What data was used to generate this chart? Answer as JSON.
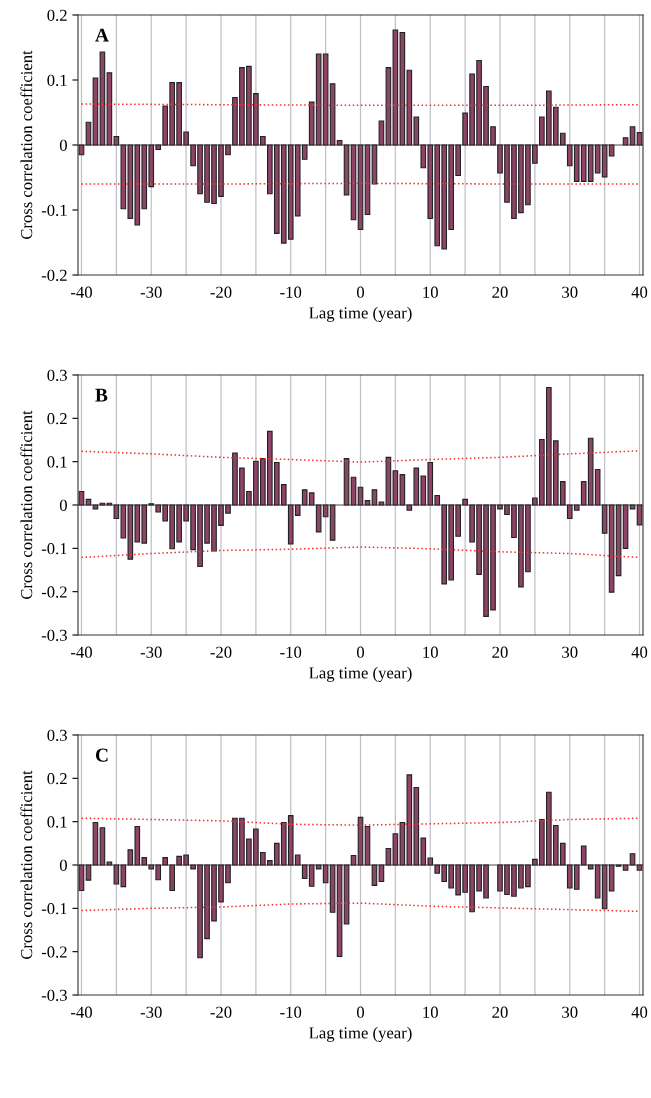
{
  "chart_data": [
    {
      "type": "bar",
      "annotations": [
        "A"
      ],
      "xlabel": "Lag time (year)",
      "ylabel": "Cross correlation coefficient",
      "x": [
        -40,
        -39,
        -38,
        -37,
        -36,
        -35,
        -34,
        -33,
        -32,
        -31,
        -30,
        -29,
        -28,
        -27,
        -26,
        -25,
        -24,
        -23,
        -22,
        -21,
        -20,
        -19,
        -18,
        -17,
        -16,
        -15,
        -14,
        -13,
        -12,
        -11,
        -10,
        -9,
        -8,
        -7,
        -6,
        -5,
        -4,
        -3,
        -2,
        -1,
        0,
        1,
        2,
        3,
        4,
        5,
        6,
        7,
        8,
        9,
        10,
        11,
        12,
        13,
        14,
        15,
        16,
        17,
        18,
        19,
        20,
        21,
        22,
        23,
        24,
        25,
        26,
        27,
        28,
        29,
        30,
        31,
        32,
        33,
        34,
        35,
        36,
        37,
        38,
        39,
        40
      ],
      "xlim": [
        -40.5,
        40.5
      ],
      "xticks": [
        -40,
        {
          "value": -35,
          "label": null
        },
        -30,
        {
          "value": -25,
          "label": null
        },
        -20,
        {
          "value": -15,
          "label": null
        },
        -10,
        {
          "value": -5,
          "label": null
        },
        0,
        {
          "value": 5,
          "label": null
        },
        10,
        {
          "value": 15,
          "label": null
        },
        20,
        {
          "value": 25,
          "label": null
        },
        30,
        {
          "value": 35,
          "label": null
        },
        40
      ],
      "ylim": [
        -0.2,
        0.2
      ],
      "yticks": [
        -0.2,
        -0.1,
        0,
        0.1,
        0.2
      ],
      "grid": "x",
      "series": [
        {
          "color": "#8e4466",
          "values": [
            -0.015,
            0.035,
            0.103,
            0.143,
            0.111,
            0.013,
            -0.098,
            -0.113,
            -0.123,
            -0.098,
            -0.064,
            -0.007,
            0.06,
            0.096,
            0.096,
            0.02,
            -0.032,
            -0.075,
            -0.088,
            -0.09,
            -0.079,
            -0.015,
            0.073,
            0.119,
            0.121,
            0.079,
            0.013,
            -0.075,
            -0.136,
            -0.151,
            -0.145,
            -0.109,
            -0.022,
            0.066,
            0.14,
            0.14,
            0.094,
            0.007,
            -0.077,
            -0.115,
            -0.13,
            -0.107,
            -0.06,
            0.037,
            0.119,
            0.177,
            0.173,
            0.115,
            0.043,
            -0.035,
            -0.113,
            -0.155,
            -0.16,
            -0.13,
            -0.047,
            0.049,
            0.109,
            0.13,
            0.09,
            0.028,
            -0.043,
            -0.088,
            -0.113,
            -0.104,
            -0.092,
            -0.028,
            0.043,
            0.083,
            0.058,
            0.018,
            -0.032,
            -0.056,
            -0.056,
            -0.056,
            -0.043,
            -0.049,
            -0.017,
            null,
            0.011,
            0.028,
            0.019
          ]
        },
        {
          "type": "line",
          "color": "#ee3333",
          "line_style": "dotted",
          "x": [
            -40,
            -20,
            0,
            20,
            40
          ],
          "values": [
            0.063,
            0.062,
            0.061,
            0.061,
            0.062
          ]
        },
        {
          "type": "line",
          "color": "#ee3333",
          "line_style": "dotted",
          "x": [
            -40,
            -20,
            0,
            20,
            40
          ],
          "values": [
            -0.06,
            -0.06,
            -0.059,
            -0.06,
            -0.06
          ]
        }
      ]
    },
    {
      "type": "bar",
      "annotations": [
        "B"
      ],
      "xlabel": "Lag time (year)",
      "ylabel": "Cross correlation coefficient",
      "x": [
        -40,
        -39,
        -38,
        -37,
        -36,
        -35,
        -34,
        -33,
        -32,
        -31,
        -30,
        -29,
        -28,
        -27,
        -26,
        -25,
        -24,
        -23,
        -22,
        -21,
        -20,
        -19,
        -18,
        -17,
        -16,
        -15,
        -14,
        -13,
        -12,
        -11,
        -10,
        -9,
        -8,
        -7,
        -6,
        -5,
        -4,
        -3,
        -2,
        -1,
        0,
        1,
        2,
        3,
        4,
        5,
        6,
        7,
        8,
        9,
        10,
        11,
        12,
        13,
        14,
        15,
        16,
        17,
        18,
        19,
        20,
        21,
        22,
        23,
        24,
        25,
        26,
        27,
        28,
        29,
        30,
        31,
        32,
        33,
        34,
        35,
        36,
        37,
        38,
        39,
        40
      ],
      "xlim": [
        -40.5,
        40.5
      ],
      "xticks": [
        -40,
        {
          "value": -35,
          "label": null
        },
        -30,
        {
          "value": -25,
          "label": null
        },
        -20,
        {
          "value": -15,
          "label": null
        },
        -10,
        {
          "value": -5,
          "label": null
        },
        0,
        {
          "value": 5,
          "label": null
        },
        10,
        {
          "value": 15,
          "label": null
        },
        20,
        {
          "value": 25,
          "label": null
        },
        30,
        {
          "value": 35,
          "label": null
        },
        40
      ],
      "ylim": [
        -0.3,
        0.3
      ],
      "yticks": [
        -0.3,
        -0.2,
        -0.1,
        0,
        0.1,
        0.2,
        0.3
      ],
      "grid": "x",
      "series": [
        {
          "color": "#8e4466",
          "values": [
            0.031,
            0.013,
            -0.009,
            0.004,
            0.004,
            -0.031,
            -0.076,
            -0.125,
            -0.085,
            -0.088,
            0.003,
            -0.016,
            -0.037,
            -0.101,
            -0.085,
            -0.037,
            -0.103,
            -0.142,
            -0.088,
            -0.106,
            -0.047,
            -0.019,
            0.12,
            0.085,
            0.031,
            0.101,
            0.107,
            0.17,
            0.098,
            0.047,
            -0.09,
            -0.024,
            0.035,
            0.028,
            -0.062,
            -0.027,
            -0.081,
            null,
            0.107,
            0.064,
            0.041,
            0.01,
            0.035,
            0.007,
            0.11,
            0.079,
            0.07,
            -0.012,
            0.085,
            0.067,
            0.098,
            0.022,
            -0.182,
            -0.173,
            -0.072,
            0.013,
            -0.085,
            -0.16,
            -0.257,
            -0.242,
            -0.009,
            -0.022,
            -0.075,
            -0.189,
            -0.154,
            0.016,
            0.151,
            0.271,
            0.148,
            0.054,
            -0.031,
            -0.012,
            0.054,
            0.154,
            0.082,
            -0.065,
            -0.201,
            -0.163,
            -0.1,
            -0.009,
            -0.046
          ]
        },
        {
          "type": "line",
          "color": "#ee3333",
          "line_style": "dotted",
          "x": [
            -40,
            -30,
            -20,
            -10,
            0,
            10,
            20,
            30,
            40
          ],
          "values": [
            0.124,
            0.118,
            0.11,
            0.105,
            0.099,
            0.105,
            0.11,
            0.118,
            0.125
          ]
        },
        {
          "type": "line",
          "color": "#ee3333",
          "line_style": "dotted",
          "x": [
            -40,
            -30,
            -20,
            -10,
            0,
            10,
            20,
            30,
            40
          ],
          "values": [
            -0.121,
            -0.112,
            -0.105,
            -0.102,
            -0.097,
            -0.101,
            -0.108,
            -0.112,
            -0.121
          ]
        }
      ]
    },
    {
      "type": "bar",
      "annotations": [
        "C"
      ],
      "xlabel": "Lag time (year)",
      "ylabel": "Cross correlation coefficient",
      "x": [
        -40,
        -39,
        -38,
        -37,
        -36,
        -35,
        -34,
        -33,
        -32,
        -31,
        -30,
        -29,
        -28,
        -27,
        -26,
        -25,
        -24,
        -23,
        -22,
        -21,
        -20,
        -19,
        -18,
        -17,
        -16,
        -15,
        -14,
        -13,
        -12,
        -11,
        -10,
        -9,
        -8,
        -7,
        -6,
        -5,
        -4,
        -3,
        -2,
        -1,
        0,
        1,
        2,
        3,
        4,
        5,
        6,
        7,
        8,
        9,
        10,
        11,
        12,
        13,
        14,
        15,
        16,
        17,
        18,
        19,
        20,
        21,
        22,
        23,
        24,
        25,
        26,
        27,
        28,
        29,
        30,
        31,
        32,
        33,
        34,
        35,
        36,
        37,
        38,
        39,
        40
      ],
      "xlim": [
        -40.5,
        40.5
      ],
      "xticks": [
        -40,
        {
          "value": -35,
          "label": null
        },
        -30,
        {
          "value": -25,
          "label": null
        },
        -20,
        {
          "value": -15,
          "label": null
        },
        -10,
        {
          "value": -5,
          "label": null
        },
        0,
        {
          "value": 5,
          "label": null
        },
        10,
        {
          "value": 15,
          "label": null
        },
        20,
        {
          "value": 25,
          "label": null
        },
        30,
        {
          "value": 35,
          "label": null
        },
        40
      ],
      "ylim": [
        -0.3,
        0.3
      ],
      "yticks": [
        -0.3,
        -0.2,
        -0.1,
        0,
        0.1,
        0.2,
        0.3
      ],
      "grid": "x",
      "series": [
        {
          "color": "#8e4466",
          "values": [
            -0.059,
            -0.035,
            0.098,
            0.086,
            0.007,
            -0.044,
            -0.05,
            0.035,
            0.089,
            0.017,
            -0.009,
            -0.034,
            0.017,
            -0.059,
            0.02,
            0.023,
            -0.009,
            -0.214,
            -0.17,
            -0.129,
            -0.085,
            -0.041,
            0.108,
            0.108,
            0.06,
            0.083,
            0.029,
            0.01,
            0.05,
            0.098,
            0.114,
            0.023,
            -0.031,
            -0.049,
            -0.009,
            -0.041,
            -0.109,
            -0.211,
            -0.136,
            0.022,
            0.11,
            0.089,
            -0.047,
            -0.038,
            0.038,
            0.072,
            0.098,
            0.208,
            0.179,
            0.062,
            0.016,
            -0.019,
            -0.038,
            -0.053,
            -0.069,
            -0.063,
            -0.108,
            -0.06,
            -0.076,
            null,
            -0.06,
            -0.068,
            -0.072,
            -0.053,
            -0.05,
            0.013,
            0.105,
            0.168,
            0.091,
            0.05,
            -0.053,
            -0.056,
            0.044,
            -0.009,
            -0.076,
            -0.101,
            -0.06,
            -0.003,
            -0.012,
            0.026,
            -0.012
          ]
        },
        {
          "type": "line",
          "color": "#ee3333",
          "line_style": "dotted",
          "x": [
            -40,
            -30,
            -20,
            -10,
            0,
            10,
            20,
            30,
            40
          ],
          "values": [
            0.108,
            0.105,
            0.102,
            0.094,
            0.092,
            0.095,
            0.098,
            0.105,
            0.108
          ]
        },
        {
          "type": "line",
          "color": "#ee3333",
          "line_style": "dotted",
          "x": [
            -40,
            -30,
            -20,
            -10,
            0,
            10,
            20,
            30,
            40
          ],
          "values": [
            -0.105,
            -0.1,
            -0.097,
            -0.09,
            -0.088,
            -0.095,
            -0.099,
            -0.103,
            -0.107
          ]
        }
      ]
    }
  ]
}
